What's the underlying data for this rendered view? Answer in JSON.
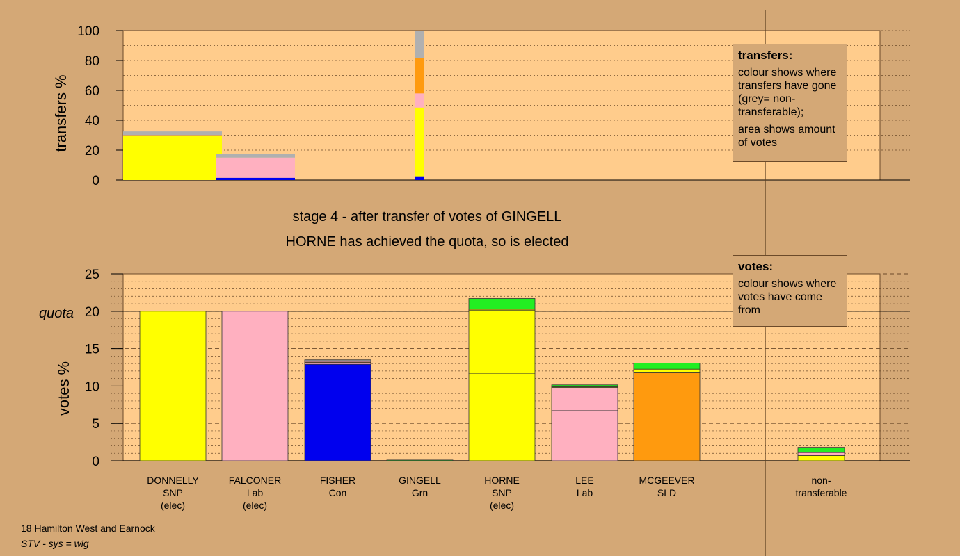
{
  "chart_data": {
    "transfers_chart": {
      "type": "bar",
      "ylabel": "transfers %",
      "ylim": [
        0,
        100
      ],
      "yticks": [
        "0",
        "20",
        "40",
        "60",
        "80",
        "100"
      ],
      "bars": [
        {
          "from": "DONNELLY",
          "width_votes": 0.0,
          "segments": [
            {
              "to": "HORNE",
              "color": "#ffff00",
              "value": 29.5
            },
            {
              "to": "MCGEEVER",
              "color": "#ff9a0e",
              "value": 0.5
            },
            {
              "to": "non-transferable",
              "color": "#b0b0b0",
              "value": 2.5
            }
          ]
        },
        {
          "from": "FALCONER",
          "segments": [
            {
              "to": "FISHER",
              "color": "#0000ee",
              "value": 1.5
            },
            {
              "to": "LEE",
              "color": "#ffb0c0",
              "value": 13.5
            },
            {
              "to": "non-transferable",
              "color": "#b0b0b0",
              "value": 2.5
            }
          ]
        },
        {
          "from": "GINGELL",
          "segments": [
            {
              "to": "FISHER",
              "color": "#0000ee",
              "value": 2.5
            },
            {
              "to": "HORNE",
              "color": "#ffff00",
              "value": 46
            },
            {
              "to": "LEE",
              "color": "#ffb0c0",
              "value": 9.5
            },
            {
              "to": "MCGEEVER",
              "color": "#ff9a0e",
              "value": 23.5
            },
            {
              "to": "non-transferable",
              "color": "#b0b0b0",
              "value": 18.5
            }
          ]
        }
      ]
    },
    "votes_chart": {
      "type": "bar",
      "ylabel": "votes %",
      "ylim": [
        0,
        25
      ],
      "yticks": [
        "0",
        "5",
        "10",
        "15",
        "20",
        "25"
      ],
      "quota": 20,
      "quota_label": "quota",
      "candidates": [
        {
          "name": "DONNELLY",
          "party": "SNP",
          "status": "(elec)",
          "segments": [
            {
              "color": "#ffff00",
              "value": 20
            }
          ]
        },
        {
          "name": "FALCONER",
          "party": "Lab",
          "status": "(elec)",
          "segments": [
            {
              "color": "#ffb0c0",
              "value": 20
            }
          ]
        },
        {
          "name": "FISHER",
          "party": "Con",
          "status": "",
          "segments": [
            {
              "color": "#0000ee",
              "value": 12.9
            },
            {
              "color": "#ffb0c0",
              "value": 0.2
            },
            {
              "color": "#ff9a0e",
              "value": 0.1
            },
            {
              "color": "#ffb0c0",
              "value": 0.15
            },
            {
              "color": "#999999",
              "value": 0.15
            }
          ]
        },
        {
          "name": "GINGELL",
          "party": "Grn",
          "status": "",
          "segments": [
            {
              "color": "#22ee22",
              "value": 0.1
            }
          ]
        },
        {
          "name": "HORNE",
          "party": "SNP",
          "status": "(elec)",
          "segments": [
            {
              "color": "#ffff00",
              "value": 11.7
            },
            {
              "color": "#ffff00",
              "value": 8.4
            },
            {
              "color": "#ffff00",
              "value": 0.15
            },
            {
              "color": "#22ee22",
              "value": 1.45
            }
          ]
        },
        {
          "name": "LEE",
          "party": "Lab",
          "status": "",
          "segments": [
            {
              "color": "#ffb0c0",
              "value": 6.7
            },
            {
              "color": "#ffb0c0",
              "value": 3.1
            },
            {
              "color": "#ffff00",
              "value": 0.1
            },
            {
              "color": "#22ee22",
              "value": 0.25
            }
          ]
        },
        {
          "name": "MCGEEVER",
          "party": "SLD",
          "status": "",
          "segments": [
            {
              "color": "#ff9a0e",
              "value": 11.85
            },
            {
              "color": "#ffff00",
              "value": 0.4
            },
            {
              "color": "#22ee22",
              "value": 0.8
            }
          ]
        },
        {
          "name": "non-",
          "party": "transferable",
          "status": "",
          "segments": [
            {
              "color": "#ffff00",
              "value": 0.7
            },
            {
              "color": "#ffb0c0",
              "value": 0.4
            },
            {
              "color": "#22ee22",
              "value": 0.7
            }
          ]
        }
      ]
    },
    "stage_title": "stage 4 - after transfer of votes of GINGELL",
    "stage_subtitle": "HORNE has achieved the quota, so is elected"
  },
  "legends": {
    "transfers": {
      "title": "transfers:",
      "line1": "colour shows where transfers have gone (grey= non-transferable);",
      "line2": "area shows amount of votes"
    },
    "votes": {
      "title": "votes:",
      "line1": "colour shows where votes have come from"
    }
  },
  "footer": {
    "constituency": "18 Hamilton West and Earnock",
    "system": "STV - sys = wig"
  },
  "colors": {
    "background": "#d4a876",
    "plot_background": "#ffcc8c"
  }
}
